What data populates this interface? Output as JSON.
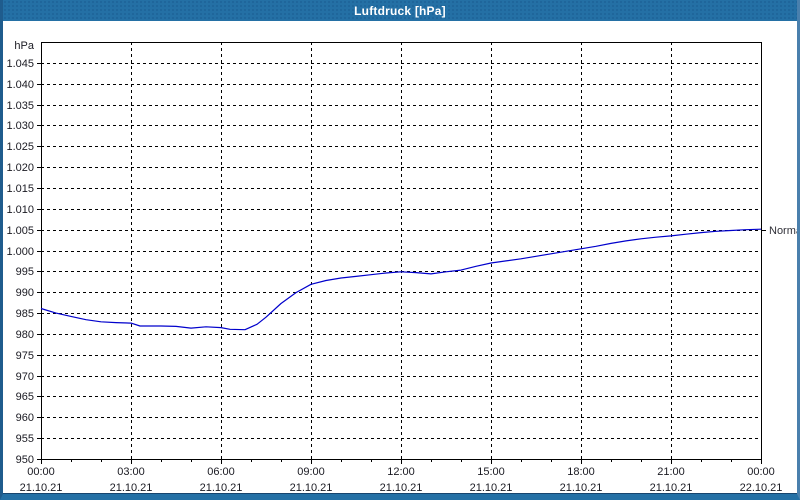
{
  "window": {
    "title": "Luftdruck [hPa]"
  },
  "colors": {
    "titlebar_bg": "#2470a5",
    "titlebar_text": "#ffffff",
    "plot_bg": "#ffffff",
    "grid": "#000000",
    "axis": "#000000",
    "line": "#0000cc",
    "label_text": "#1a1a22",
    "annotation_text": "#303038"
  },
  "chart_data": {
    "type": "line",
    "title": "Luftdruck [hPa]",
    "xlabel": "",
    "ylabel": "hPa",
    "y_min": 950,
    "y_max": 1050,
    "y_tick_step": 5,
    "grid": "dashed",
    "legend": "none",
    "x_range_hours": [
      0,
      24
    ],
    "x_minor_tick_every_hours": 1,
    "y_ticks": [
      {
        "value": 1045,
        "label": "1.045"
      },
      {
        "value": 1040,
        "label": "1.040"
      },
      {
        "value": 1035,
        "label": "1.035"
      },
      {
        "value": 1030,
        "label": "1.030"
      },
      {
        "value": 1025,
        "label": "1.025"
      },
      {
        "value": 1020,
        "label": "1.020"
      },
      {
        "value": 1015,
        "label": "1.015"
      },
      {
        "value": 1010,
        "label": "1.010"
      },
      {
        "value": 1005,
        "label": "1.005"
      },
      {
        "value": 1000,
        "label": "1.000"
      },
      {
        "value": 995,
        "label": "995"
      },
      {
        "value": 990,
        "label": "990"
      },
      {
        "value": 985,
        "label": "985"
      },
      {
        "value": 980,
        "label": "980"
      },
      {
        "value": 975,
        "label": "975"
      },
      {
        "value": 970,
        "label": "970"
      },
      {
        "value": 965,
        "label": "965"
      },
      {
        "value": 960,
        "label": "960"
      },
      {
        "value": 955,
        "label": "955"
      },
      {
        "value": 950,
        "label": "950"
      }
    ],
    "x_ticks": [
      {
        "hour": 0,
        "time": "00:00",
        "date": "21.10.21"
      },
      {
        "hour": 3,
        "time": "03:00",
        "date": "21.10.21"
      },
      {
        "hour": 6,
        "time": "06:00",
        "date": "21.10.21"
      },
      {
        "hour": 9,
        "time": "09:00",
        "date": "21.10.21"
      },
      {
        "hour": 12,
        "time": "12:00",
        "date": "21.10.21"
      },
      {
        "hour": 15,
        "time": "15:00",
        "date": "21.10.21"
      },
      {
        "hour": 18,
        "time": "18:00",
        "date": "21.10.21"
      },
      {
        "hour": 21,
        "time": "21:00",
        "date": "21.10.21"
      },
      {
        "hour": 24,
        "time": "00:00",
        "date": "22.10.21"
      }
    ],
    "series": [
      {
        "name": "Luftdruck",
        "points": [
          [
            0,
            986.1
          ],
          [
            0.5,
            985.0
          ],
          [
            1,
            984.2
          ],
          [
            1.5,
            983.4
          ],
          [
            2,
            982.9
          ],
          [
            2.5,
            982.7
          ],
          [
            3,
            982.6
          ],
          [
            3.3,
            981.9
          ],
          [
            4,
            981.9
          ],
          [
            4.5,
            981.8
          ],
          [
            5,
            981.4
          ],
          [
            5.5,
            981.7
          ],
          [
            6,
            981.5
          ],
          [
            6.3,
            981.1
          ],
          [
            6.8,
            981.0
          ],
          [
            7.2,
            982.3
          ],
          [
            7.5,
            984.0
          ],
          [
            8,
            987.3
          ],
          [
            8.5,
            989.9
          ],
          [
            9,
            991.9
          ],
          [
            9.5,
            992.8
          ],
          [
            10,
            993.4
          ],
          [
            10.5,
            993.8
          ],
          [
            11,
            994.2
          ],
          [
            11.5,
            994.6
          ],
          [
            12,
            994.9
          ],
          [
            12.5,
            994.7
          ],
          [
            13,
            994.4
          ],
          [
            13.5,
            994.9
          ],
          [
            14,
            995.3
          ],
          [
            14.5,
            996.2
          ],
          [
            15,
            997.0
          ],
          [
            15.5,
            997.5
          ],
          [
            16,
            998.0
          ],
          [
            16.5,
            998.6
          ],
          [
            17,
            999.2
          ],
          [
            17.5,
            999.8
          ],
          [
            18,
            1000.4
          ],
          [
            18.5,
            1001.0
          ],
          [
            19,
            1001.7
          ],
          [
            19.5,
            1002.3
          ],
          [
            20,
            1002.8
          ],
          [
            20.5,
            1003.2
          ],
          [
            21,
            1003.5
          ],
          [
            21.5,
            1003.9
          ],
          [
            22,
            1004.3
          ],
          [
            22.5,
            1004.6
          ],
          [
            23,
            1004.8
          ],
          [
            23.5,
            1005.0
          ],
          [
            24,
            1005.1
          ]
        ]
      }
    ],
    "annotations": [
      {
        "label": "Normal",
        "value": 1005,
        "side": "right"
      }
    ]
  }
}
